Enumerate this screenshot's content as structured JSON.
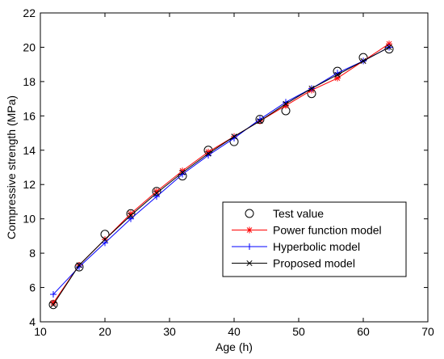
{
  "chart_data": {
    "type": "line",
    "xlabel": "Age (h)",
    "ylabel": "Compressive strength (MPa)",
    "xlim": [
      10,
      70
    ],
    "ylim": [
      4,
      22
    ],
    "xticks": [
      10,
      20,
      30,
      40,
      50,
      60,
      70
    ],
    "yticks": [
      4,
      6,
      8,
      10,
      12,
      14,
      16,
      18,
      20,
      22
    ],
    "grid": false,
    "legend_position": "bottom-right",
    "series": [
      {
        "name": "Test value",
        "style": "marker-only",
        "marker": "circle",
        "color": "#000000",
        "x": [
          12,
          16,
          20,
          24,
          28,
          32,
          36,
          40,
          44,
          48,
          52,
          56,
          60,
          64
        ],
        "y": [
          5.0,
          7.2,
          9.1,
          10.3,
          11.6,
          12.5,
          14.0,
          14.5,
          15.8,
          16.3,
          17.3,
          18.6,
          19.4,
          19.9
        ]
      },
      {
        "name": "Power function model",
        "style": "line-marker",
        "marker": "star",
        "color": "#ff0000",
        "x": [
          12,
          16,
          20,
          24,
          28,
          32,
          36,
          40,
          44,
          48,
          52,
          56,
          60,
          64
        ],
        "y": [
          5.1,
          7.3,
          8.8,
          10.3,
          11.6,
          12.8,
          13.9,
          14.8,
          15.7,
          16.6,
          17.5,
          18.2,
          19.2,
          20.2
        ]
      },
      {
        "name": "Hyperbolic model",
        "style": "line-marker",
        "marker": "plus",
        "color": "#0000ff",
        "x": [
          12,
          16,
          20,
          24,
          28,
          32,
          36,
          40,
          44,
          48,
          52,
          56,
          60,
          64
        ],
        "y": [
          5.6,
          7.2,
          8.6,
          10.0,
          11.3,
          12.6,
          13.7,
          14.7,
          15.8,
          16.8,
          17.6,
          18.5,
          19.2,
          20.0
        ]
      },
      {
        "name": "Proposed model",
        "style": "line-marker",
        "marker": "x",
        "color": "#000000",
        "x": [
          12,
          16,
          20,
          24,
          28,
          32,
          36,
          40,
          44,
          48,
          52,
          56,
          60,
          64
        ],
        "y": [
          5.0,
          7.3,
          8.8,
          10.2,
          11.5,
          12.7,
          13.8,
          14.8,
          15.7,
          16.7,
          17.6,
          18.4,
          19.2,
          20.0
        ]
      }
    ]
  }
}
